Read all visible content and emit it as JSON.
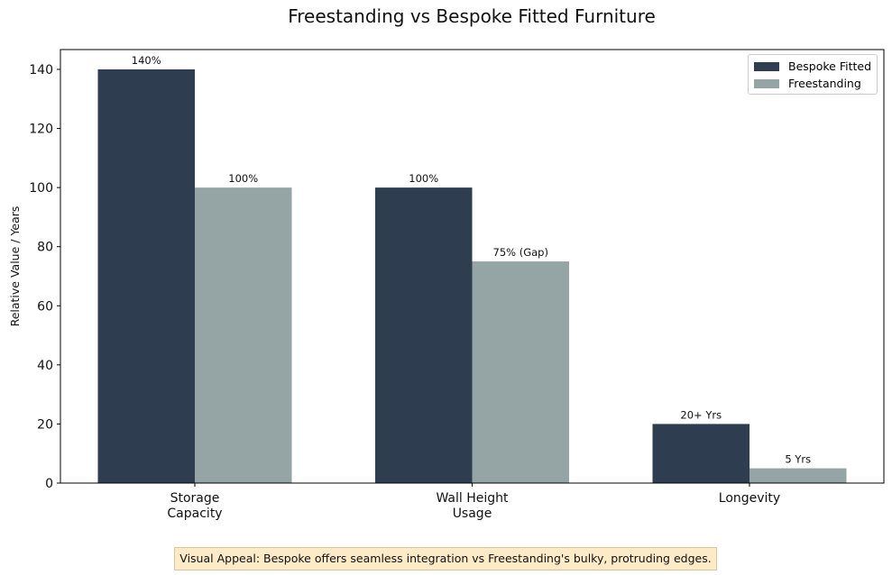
{
  "chart_data": {
    "type": "bar",
    "title": "Freestanding vs Bespoke Fitted Furniture",
    "xlabel": "",
    "ylabel": "Relative Value / Years",
    "ylim": [
      0,
      146.7
    ],
    "yticks": [
      "0",
      "20",
      "40",
      "60",
      "80",
      "100",
      "120",
      "140"
    ],
    "categories": [
      "Storage\nCapacity",
      "Wall Height\nUsage",
      "Longevity"
    ],
    "series": [
      {
        "name": "Bespoke Fitted",
        "color": "#2e3e50",
        "values": [
          140,
          100,
          20
        ],
        "labels": [
          "140%",
          "100%",
          "20+ Yrs"
        ]
      },
      {
        "name": "Freestanding",
        "color": "#95a5a6",
        "values": [
          100,
          75,
          5
        ],
        "labels": [
          "100%",
          "75% (Gap)",
          "5 Yrs"
        ]
      }
    ],
    "legend_position": "top-right",
    "grid": false,
    "annotation": "Visual Appeal: Bespoke offers seamless integration vs Freestanding's bulky, protruding edges."
  }
}
